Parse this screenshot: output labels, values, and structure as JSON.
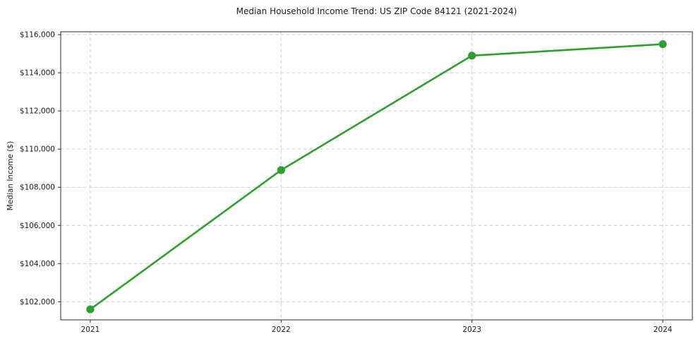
{
  "chart_data": {
    "type": "line",
    "title": "Median Household Income Trend: US ZIP Code 84121 (2021-2024)",
    "xlabel": "",
    "ylabel": "Median Income ($)",
    "x": [
      2021,
      2022,
      2023,
      2024
    ],
    "series": [
      {
        "name": "Median Household Income",
        "values": [
          101600,
          108900,
          114900,
          115500
        ]
      }
    ],
    "xticks": [
      2021,
      2022,
      2023,
      2024
    ],
    "xtick_labels": [
      "2021",
      "2022",
      "2023",
      "2024"
    ],
    "yticks": [
      102000,
      104000,
      106000,
      108000,
      110000,
      112000,
      114000,
      116000
    ],
    "ytick_labels": [
      "$102,000",
      "$104,000",
      "$106,000",
      "$108,000",
      "$110,000",
      "$112,000",
      "$114,000",
      "$116,000"
    ],
    "xlim": [
      2020.845,
      2024.155
    ],
    "ylim": [
      101050,
      116150
    ],
    "grid": true,
    "grid_style": "dashed",
    "legend": "none",
    "line_color": "#2ca02c",
    "marker": "circle",
    "grid_color": "#cccccc",
    "spine_color": "#2a2a2a",
    "background": "#ffffff"
  }
}
